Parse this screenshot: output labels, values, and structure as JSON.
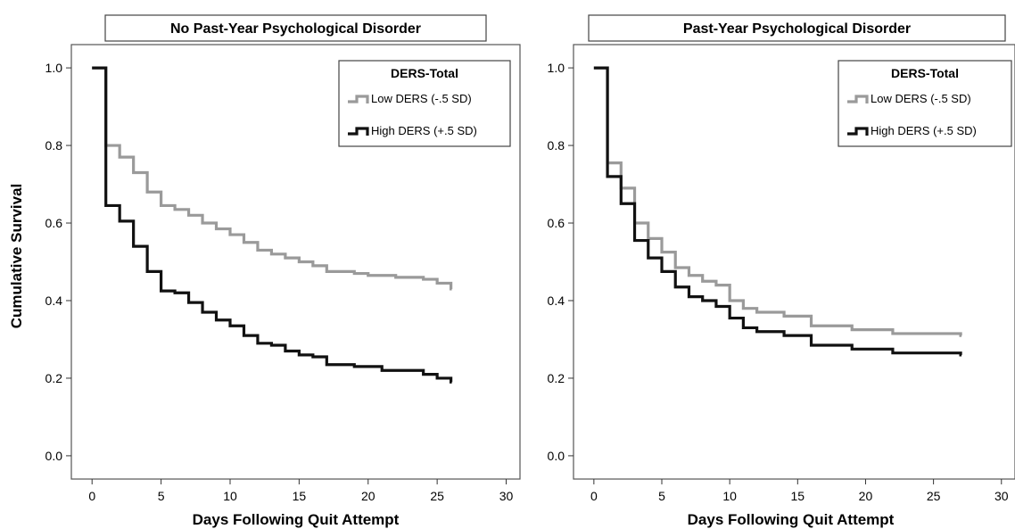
{
  "figure": {
    "ylabel": "Cumulative Survival"
  },
  "chart_data": [
    {
      "type": "line",
      "title": "No Past-Year Psychological Disorder",
      "xlabel": "Days Following Quit Attempt",
      "ylabel": "Cumulative Survival",
      "xlim": [
        -1.5,
        31
      ],
      "ylim": [
        -0.06,
        1.06
      ],
      "xticks": [
        0,
        5,
        10,
        15,
        20,
        25,
        30
      ],
      "yticks": [
        "0.0",
        "0.2",
        "0.4",
        "0.6",
        "0.8",
        "1.0"
      ],
      "step": true,
      "legend": {
        "title": "DERS-Total",
        "placement": "top-right",
        "entries": [
          "Low DERS (-.5 SD)",
          "High DERS (+.5 SD)"
        ]
      },
      "series": [
        {
          "name": "Low DERS (-.5 SD)",
          "color": "#9a9a9a",
          "x": [
            0,
            1,
            2,
            3,
            4,
            5,
            6,
            7,
            8,
            9,
            10,
            11,
            12,
            13,
            14,
            15,
            16,
            17,
            18,
            19,
            20,
            22,
            24,
            25,
            26
          ],
          "y": [
            1.0,
            0.8,
            0.77,
            0.73,
            0.68,
            0.645,
            0.635,
            0.62,
            0.6,
            0.585,
            0.57,
            0.55,
            0.53,
            0.52,
            0.51,
            0.5,
            0.49,
            0.475,
            0.475,
            0.47,
            0.465,
            0.46,
            0.455,
            0.445,
            0.43
          ]
        },
        {
          "name": "High DERS (+.5 SD)",
          "color": "#111111",
          "x": [
            0,
            1,
            2,
            3,
            4,
            5,
            6,
            7,
            8,
            9,
            10,
            11,
            12,
            13,
            14,
            15,
            16,
            17,
            19,
            21,
            24,
            25,
            26
          ],
          "y": [
            1.0,
            0.645,
            0.605,
            0.54,
            0.475,
            0.425,
            0.42,
            0.395,
            0.37,
            0.35,
            0.335,
            0.31,
            0.29,
            0.285,
            0.27,
            0.26,
            0.255,
            0.235,
            0.23,
            0.22,
            0.21,
            0.2,
            0.19
          ]
        }
      ]
    },
    {
      "type": "line",
      "title": "Past-Year Psychological Disorder",
      "xlabel": "Days Following Quit Attempt",
      "ylabel": "",
      "xlim": [
        -1.5,
        31
      ],
      "ylim": [
        -0.06,
        1.06
      ],
      "xticks": [
        0,
        5,
        10,
        15,
        20,
        25,
        30
      ],
      "yticks": [
        "0.0",
        "0.2",
        "0.4",
        "0.6",
        "0.8",
        "1.0"
      ],
      "step": true,
      "legend": {
        "title": "DERS-Total",
        "placement": "top-right",
        "entries": [
          "Low DERS (-.5 SD)",
          "High DERS (+.5 SD)"
        ]
      },
      "series": [
        {
          "name": "Low DERS (-.5 SD)",
          "color": "#9a9a9a",
          "x": [
            0,
            1,
            2,
            3,
            4,
            5,
            6,
            7,
            8,
            9,
            10,
            11,
            12,
            14,
            16,
            19,
            22,
            27
          ],
          "y": [
            1.0,
            0.755,
            0.69,
            0.6,
            0.56,
            0.525,
            0.485,
            0.465,
            0.45,
            0.44,
            0.4,
            0.38,
            0.37,
            0.36,
            0.335,
            0.325,
            0.315,
            0.31
          ]
        },
        {
          "name": "High DERS (+.5 SD)",
          "color": "#111111",
          "x": [
            0,
            1,
            2,
            3,
            4,
            5,
            6,
            7,
            8,
            9,
            10,
            11,
            12,
            14,
            16,
            19,
            22,
            27
          ],
          "y": [
            1.0,
            0.72,
            0.65,
            0.555,
            0.51,
            0.475,
            0.435,
            0.41,
            0.4,
            0.385,
            0.355,
            0.33,
            0.32,
            0.31,
            0.285,
            0.275,
            0.265,
            0.26
          ]
        }
      ]
    }
  ]
}
